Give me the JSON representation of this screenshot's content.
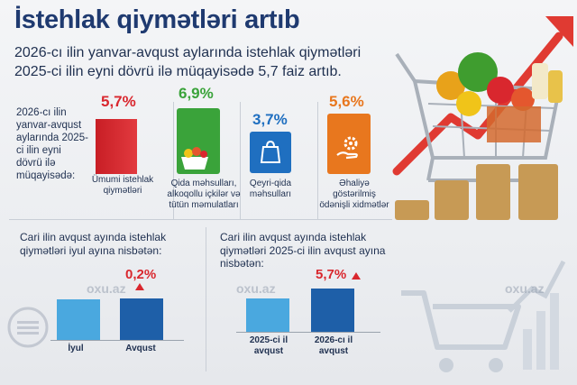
{
  "header": {
    "title": "İstehlak qiymətləri artıb",
    "subtitle": "2026-cı ilin yanvar-avqust aylarında istehlak qiymətləri 2025-ci ilin eyni dövrü ilə müqayisədə 5,7 faiz artıb."
  },
  "top_section": {
    "period_label": "2026-cı ilin yanvar-avqust aylarında 2025-ci ilin eyni dövrü ilə müqayisədə:",
    "categories": [
      {
        "value_label": "5,7%",
        "caption": "Ümumi istehlak qiymətləri",
        "color": "#d9272e",
        "icon": "none"
      },
      {
        "value_label": "6,9%",
        "caption": "Qida məhsulları, alkoqollu içkilər və tütün məmulatları",
        "color": "#3aa33a",
        "icon": "food-basket-icon"
      },
      {
        "value_label": "3,7%",
        "caption": "Qeyri-qida məhsulları",
        "color": "#1f6fc0",
        "icon": "shopping-bag-icon"
      },
      {
        "value_label": "5,6%",
        "caption": "Əhaliyə göstərilmiş ödənişli xidmətlər",
        "color": "#e8771e",
        "icon": "service-hand-gear-icon"
      }
    ]
  },
  "bottom_left": {
    "title": "Cari ilin avqust ayında istehlak qiymətləri iyul ayına nisbətən:",
    "value_label": "0,2%",
    "value_color": "#d9272e"
  },
  "bottom_right": {
    "title": "Cari ilin avqust ayında istehlak qiymətləri 2025-ci ilin avqust ayına nisbətən:",
    "value_label": "5,7%",
    "value_color": "#d9272e"
  },
  "watermark": "oxu.az",
  "chart_data": [
    {
      "type": "bar",
      "categories": [
        "Ümumi istehlak qiymətləri",
        "Qida məhsulları, alkoqollu içkilər və tütün məmulatları",
        "Qeyri-qida məhsulları",
        "Əhaliyə göstərilmiş ödənişli xidmətlər"
      ],
      "values": [
        5.7,
        6.9,
        3.7,
        5.6
      ],
      "unit": "%"
    },
    {
      "type": "bar",
      "categories": [
        "İyul",
        "Avqust"
      ],
      "values": [
        100,
        100.2
      ]
    },
    {
      "type": "bar",
      "categories": [
        "2025-ci il avqust",
        "2026-cı il avqust"
      ],
      "values": [
        100,
        105.7
      ]
    }
  ]
}
